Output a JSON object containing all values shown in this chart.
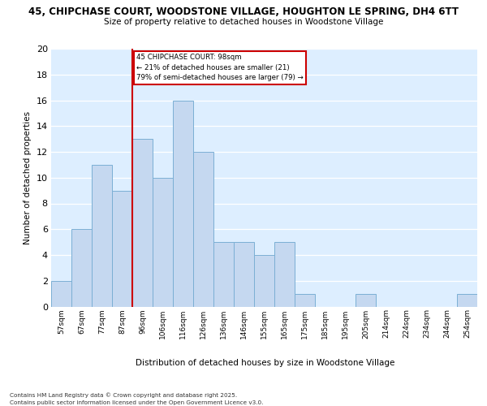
{
  "title1": "45, CHIPCHASE COURT, WOODSTONE VILLAGE, HOUGHTON LE SPRING, DH4 6TT",
  "title2": "Size of property relative to detached houses in Woodstone Village",
  "xlabel": "Distribution of detached houses by size in Woodstone Village",
  "ylabel": "Number of detached properties",
  "categories": [
    "57sqm",
    "67sqm",
    "77sqm",
    "87sqm",
    "96sqm",
    "106sqm",
    "116sqm",
    "126sqm",
    "136sqm",
    "146sqm",
    "155sqm",
    "165sqm",
    "175sqm",
    "185sqm",
    "195sqm",
    "205sqm",
    "214sqm",
    "224sqm",
    "234sqm",
    "244sqm",
    "254sqm"
  ],
  "values": [
    2,
    6,
    11,
    9,
    13,
    10,
    16,
    12,
    5,
    5,
    4,
    5,
    1,
    0,
    0,
    1,
    0,
    0,
    0,
    0,
    1
  ],
  "bar_color": "#c5d8f0",
  "bar_edge_color": "#7bafd4",
  "highlight_line_color": "#cc0000",
  "highlight_line_index": 4,
  "annotation_box_text": "45 CHIPCHASE COURT: 98sqm\n← 21% of detached houses are smaller (21)\n79% of semi-detached houses are larger (79) →",
  "annotation_box_color": "#cc0000",
  "ylim": [
    0,
    20
  ],
  "yticks": [
    0,
    2,
    4,
    6,
    8,
    10,
    12,
    14,
    16,
    18,
    20
  ],
  "background_color": "#ddeeff",
  "grid_color": "#ffffff",
  "fig_bg_color": "#ffffff",
  "footer_line1": "Contains HM Land Registry data © Crown copyright and database right 2025.",
  "footer_line2": "Contains public sector information licensed under the Open Government Licence v3.0."
}
